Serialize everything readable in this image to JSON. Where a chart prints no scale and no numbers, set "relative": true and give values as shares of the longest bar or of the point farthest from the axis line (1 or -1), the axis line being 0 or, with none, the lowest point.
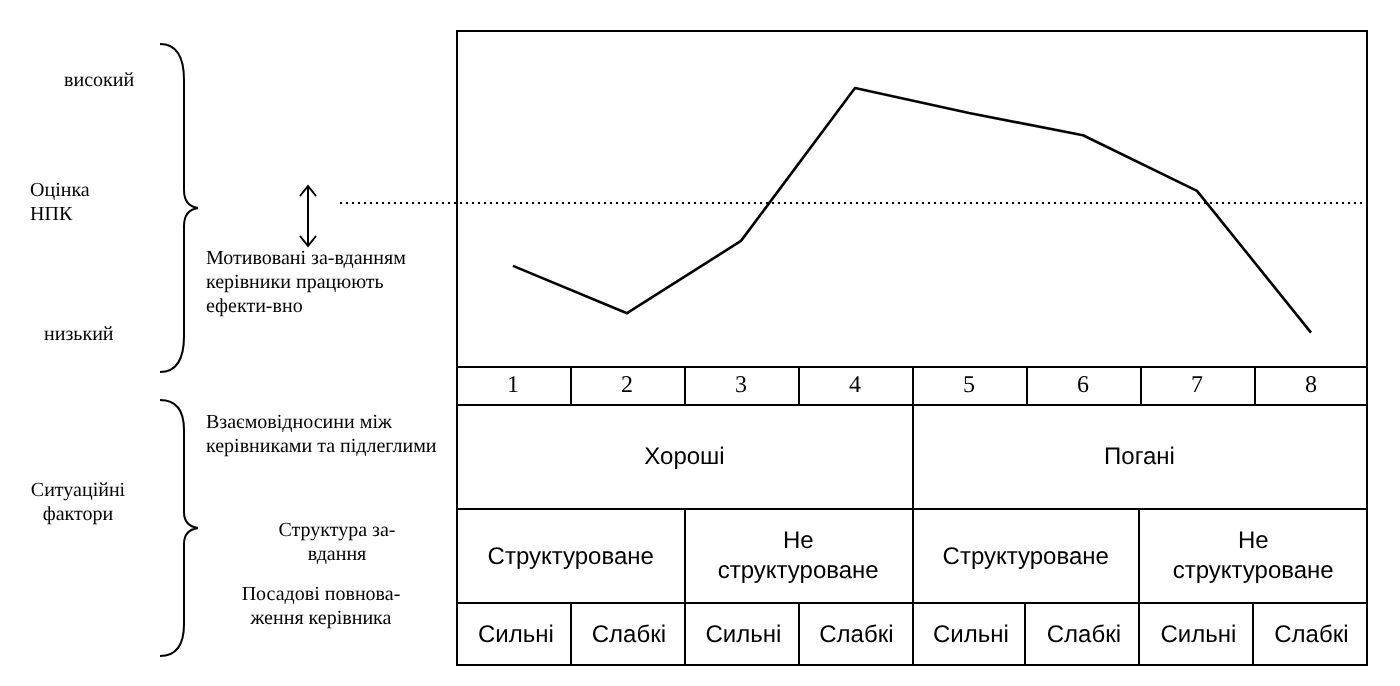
{
  "chart_data": {
    "type": "line",
    "relative": true,
    "categories": [
      "1",
      "2",
      "3",
      "4",
      "5",
      "6",
      "7",
      "8"
    ],
    "values": [
      0.36,
      0.19,
      0.45,
      1,
      0.91,
      0.83,
      0.63,
      0.12
    ],
    "color": "#000000",
    "marker": "none",
    "tick_labels": "x",
    "ref_lines": [
      {
        "axis": "y",
        "value": 0.59,
        "line_style": "dotted",
        "color": "#000000"
      }
    ],
    "annotations": [
      "високий",
      "Оцінка НПК",
      "Мотивовані за-вданням керівники працюють ефекти-вно",
      "низький",
      "Взаємовідносини між керівниками та підлеглими",
      "Ситуаційні фактори",
      "Структура за-вдання",
      "Посадові повнова-ження керівника",
      "Хороші",
      "Погані",
      "Структуроване",
      "Не структуроване",
      "Структуроване",
      "Не структуроване",
      "Сильні",
      "Слабкі",
      "Сильні",
      "Слабкі",
      "Сильні",
      "Слабкі",
      "Сильні",
      "Слабкі"
    ]
  }
}
